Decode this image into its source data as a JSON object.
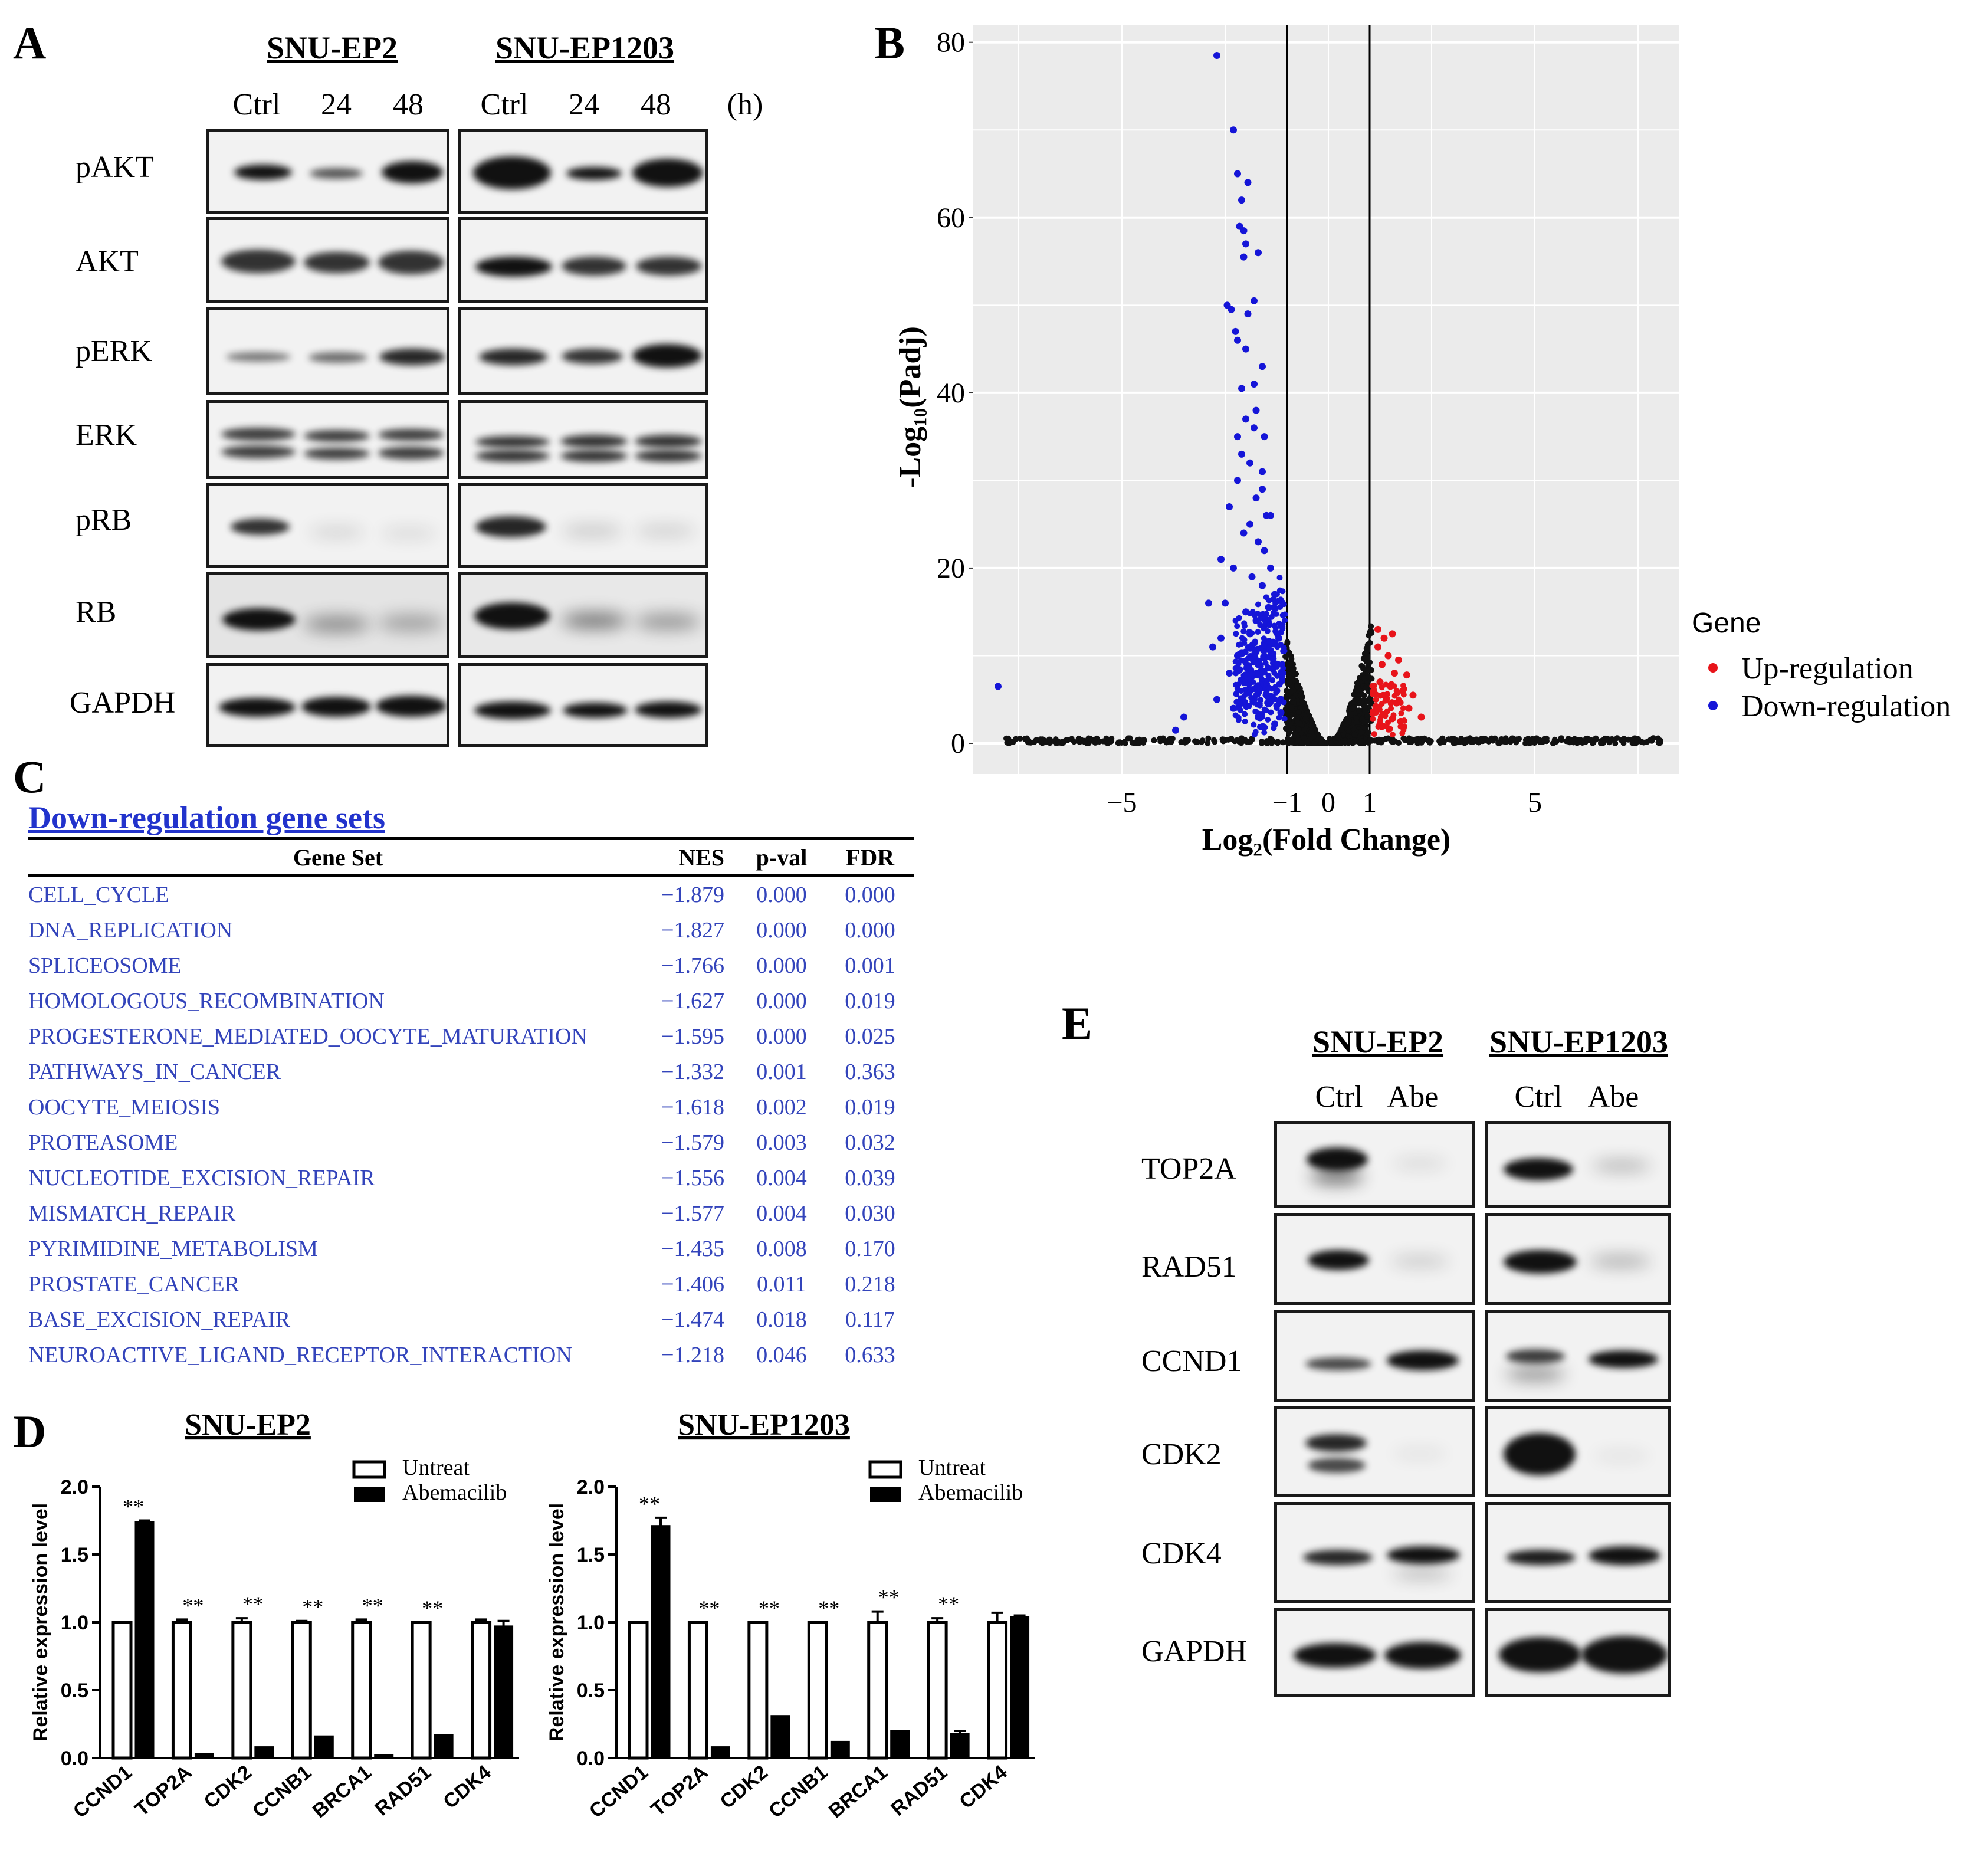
{
  "panels": {
    "a": {
      "letter": "A",
      "cell_lines": [
        "SNU-EP2",
        "SNU-EP1203"
      ],
      "lanes": [
        "Ctrl",
        "24",
        "48"
      ],
      "unit": "(h)",
      "proteins": [
        "pAKT",
        "AKT",
        "pERK",
        "ERK",
        "pRB",
        "RB",
        "GAPDH"
      ]
    },
    "b": {
      "letter": "B"
    },
    "c": {
      "letter": "C",
      "title": "Down-regulation gene sets",
      "headers": [
        "Gene Set",
        "NES",
        "p-val",
        "FDR"
      ],
      "rows": [
        [
          "CELL_CYCLE",
          "−1.879",
          "0.000",
          "0.000"
        ],
        [
          "DNA_REPLICATION",
          "−1.827",
          "0.000",
          "0.000"
        ],
        [
          "SPLICEOSOME",
          "−1.766",
          "0.000",
          "0.001"
        ],
        [
          "HOMOLOGOUS_RECOMBINATION",
          "−1.627",
          "0.000",
          "0.019"
        ],
        [
          "PROGESTERONE_MEDIATED_OOCYTE_MATURATION",
          "−1.595",
          "0.000",
          "0.025"
        ],
        [
          "PATHWAYS_IN_CANCER",
          "−1.332",
          "0.001",
          "0.363"
        ],
        [
          "OOCYTE_MEIOSIS",
          "−1.618",
          "0.002",
          "0.019"
        ],
        [
          "PROTEASOME",
          "−1.579",
          "0.003",
          "0.032"
        ],
        [
          "NUCLEOTIDE_EXCISION_REPAIR",
          "−1.556",
          "0.004",
          "0.039"
        ],
        [
          "MISMATCH_REPAIR",
          "−1.577",
          "0.004",
          "0.030"
        ],
        [
          "PYRIMIDINE_METABOLISM",
          "−1.435",
          "0.008",
          "0.170"
        ],
        [
          "PROSTATE_CANCER",
          "−1.406",
          "0.011",
          "0.218"
        ],
        [
          "BASE_EXCISION_REPAIR",
          "−1.474",
          "0.018",
          "0.117"
        ],
        [
          "NEUROACTIVE_LIGAND_RECEPTOR_INTERACTION",
          "−1.218",
          "0.046",
          "0.633"
        ]
      ]
    },
    "d": {
      "letter": "D"
    },
    "e": {
      "letter": "E",
      "cell_lines": [
        "SNU-EP2",
        "SNU-EP1203"
      ],
      "lanes": [
        "Ctrl",
        "Abe"
      ],
      "proteins": [
        "TOP2A",
        "RAD51",
        "CCND1",
        "CDK2",
        "CDK4",
        "GAPDH"
      ]
    }
  },
  "chart_data": [
    {
      "type": "scatter",
      "id": "volcano",
      "title": "",
      "xlabel": "Log₂(Fold Change)",
      "ylabel": "-Log₁₀(Padj)",
      "xlim": [
        -8.6,
        8.5
      ],
      "ylim": [
        -3.5,
        82
      ],
      "xticks": [
        -5,
        -1,
        0,
        1,
        5
      ],
      "xtick_labels": [
        "−5",
        "−1",
        "0",
        "1",
        "5"
      ],
      "yticks": [
        0,
        20,
        40,
        60,
        80
      ],
      "ytick_labels": [
        "0",
        "20",
        "40",
        "60",
        "80"
      ],
      "vlines": [
        -1,
        1
      ],
      "legend": {
        "title": "Gene",
        "entries": [
          "Up-regulation",
          "Down-regulation"
        ],
        "placement": "right"
      },
      "colors": {
        "up": "#e8141a",
        "down": "#1515d8",
        "ns": "#111111",
        "panel_bg": "#ebebeb",
        "grid": "#ffffff"
      },
      "series": [
        {
          "name": "Down-regulation",
          "points": [
            [
              -2.7,
              78.5
            ],
            [
              -2.3,
              70
            ],
            [
              -2.2,
              65
            ],
            [
              -1.95,
              64
            ],
            [
              -2.1,
              62
            ],
            [
              -2.15,
              59
            ],
            [
              -2.05,
              58.5
            ],
            [
              -2.0,
              57
            ],
            [
              -1.7,
              56
            ],
            [
              -2.05,
              55.5
            ],
            [
              -2.45,
              50
            ],
            [
              -2.35,
              49.5
            ],
            [
              -1.95,
              49
            ],
            [
              -1.8,
              50.5
            ],
            [
              -2.25,
              47
            ],
            [
              -2.2,
              46
            ],
            [
              -2.0,
              45
            ],
            [
              -1.6,
              43
            ],
            [
              -1.8,
              41
            ],
            [
              -2.1,
              40.5
            ],
            [
              -1.75,
              38
            ],
            [
              -2.0,
              37
            ],
            [
              -1.8,
              36
            ],
            [
              -1.55,
              35
            ],
            [
              -2.1,
              33
            ],
            [
              -1.9,
              32
            ],
            [
              -2.2,
              30
            ],
            [
              -1.6,
              29
            ],
            [
              -1.75,
              28
            ],
            [
              -2.4,
              27
            ],
            [
              -1.5,
              26
            ],
            [
              -1.9,
              25
            ],
            [
              -2.05,
              24
            ],
            [
              -1.7,
              23
            ],
            [
              -1.55,
              22
            ],
            [
              -2.3,
              20
            ],
            [
              -1.85,
              19
            ],
            [
              -1.6,
              18
            ],
            [
              -2.5,
              16
            ],
            [
              -2.0,
              15
            ],
            [
              -1.45,
              15.5
            ],
            [
              -1.75,
              14
            ],
            [
              -2.6,
              12
            ],
            [
              -1.9,
              12.5
            ],
            [
              -1.5,
              11
            ],
            [
              -2.2,
              10
            ],
            [
              -1.7,
              9
            ],
            [
              -1.35,
              8.5
            ],
            [
              -2.4,
              8
            ],
            [
              -1.95,
              7.5
            ],
            [
              -1.6,
              7
            ],
            [
              -2.7,
              5
            ],
            [
              -1.25,
              6
            ],
            [
              -1.8,
              5
            ],
            [
              -1.45,
              4.5
            ],
            [
              -2.3,
              4
            ],
            [
              -1.15,
              3.5
            ],
            [
              -1.7,
              3
            ],
            [
              -1.3,
              2.2
            ],
            [
              -3.5,
              3
            ],
            [
              -3.7,
              1.5
            ],
            [
              -8.0,
              6.5
            ],
            [
              -2.9,
              16
            ],
            [
              -1.2,
              12
            ],
            [
              -1.1,
              8
            ],
            [
              -1.4,
              20
            ],
            [
              -1.3,
              17
            ],
            [
              -1.6,
              31
            ],
            [
              -1.4,
              26
            ],
            [
              -2.6,
              21
            ],
            [
              -2.2,
              35
            ],
            [
              -2.8,
              11
            ]
          ]
        },
        {
          "name": "Up-regulation",
          "points": [
            [
              1.35,
              12
            ],
            [
              1.55,
              12.5
            ],
            [
              1.2,
              11
            ],
            [
              1.45,
              10
            ],
            [
              1.7,
              9.5
            ],
            [
              1.3,
              9
            ],
            [
              1.6,
              8
            ],
            [
              1.9,
              7.8
            ],
            [
              1.25,
              7
            ],
            [
              1.5,
              6.5
            ],
            [
              1.8,
              6
            ],
            [
              2.05,
              5.5
            ],
            [
              1.4,
              5
            ],
            [
              1.65,
              4.6
            ],
            [
              1.15,
              4.2
            ],
            [
              1.95,
              4
            ],
            [
              1.35,
              3.3
            ],
            [
              1.55,
              2.8
            ],
            [
              1.75,
              2.5
            ],
            [
              1.25,
              2.2
            ],
            [
              2.25,
              3
            ],
            [
              1.1,
              6
            ],
            [
              1.2,
              13
            ]
          ]
        }
      ]
    },
    {
      "type": "bar",
      "id": "qpcr-snu-ep2",
      "title": "SNU-EP2",
      "ylabel": "Relative expression level",
      "ylim": [
        0,
        2.0
      ],
      "yticks": [
        0.0,
        0.5,
        1.0,
        1.5,
        2.0
      ],
      "ytick_labels": [
        "0.0",
        "0.5",
        "1.0",
        "1.5",
        "2.0"
      ],
      "categories": [
        "CCND1",
        "TOP2A",
        "CDK2",
        "CCNB1",
        "BRCA1",
        "RAD51",
        "CDK4"
      ],
      "series": [
        {
          "name": "Untreat",
          "values": [
            1.0,
            1.0,
            1.0,
            1.0,
            1.0,
            1.0,
            1.0
          ],
          "errors": [
            0.0,
            0.02,
            0.03,
            0.01,
            0.02,
            0.0,
            0.02
          ]
        },
        {
          "name": "Abemacilib",
          "values": [
            1.74,
            0.03,
            0.08,
            0.16,
            0.02,
            0.17,
            0.97
          ],
          "errors": [
            0.01,
            0.0,
            0.0,
            0.0,
            0.0,
            0.0,
            0.04
          ]
        }
      ],
      "annotations": [
        "**",
        "**",
        "**",
        "**",
        "**",
        "**",
        ""
      ]
    },
    {
      "type": "bar",
      "id": "qpcr-snu-ep1203",
      "title": "SNU-EP1203",
      "ylabel": "Relative expression level",
      "ylim": [
        0,
        2.0
      ],
      "yticks": [
        0.0,
        0.5,
        1.0,
        1.5,
        2.0
      ],
      "ytick_labels": [
        "0.0",
        "0.5",
        "1.0",
        "1.5",
        "2.0"
      ],
      "categories": [
        "CCND1",
        "TOP2A",
        "CDK2",
        "CCNB1",
        "BRCA1",
        "RAD51",
        "CDK4"
      ],
      "series": [
        {
          "name": "Untreat",
          "values": [
            1.0,
            1.0,
            1.0,
            1.0,
            1.0,
            1.0,
            1.0
          ],
          "errors": [
            0.0,
            0.0,
            0.0,
            0.0,
            0.08,
            0.03,
            0.07
          ]
        },
        {
          "name": "Abemacilib",
          "values": [
            1.71,
            0.08,
            0.31,
            0.12,
            0.2,
            0.18,
            1.04
          ],
          "errors": [
            0.06,
            0.0,
            0.0,
            0.0,
            0.0,
            0.02,
            0.01
          ]
        }
      ],
      "annotations": [
        "**",
        "**",
        "**",
        "**",
        "**",
        "**",
        ""
      ]
    }
  ]
}
